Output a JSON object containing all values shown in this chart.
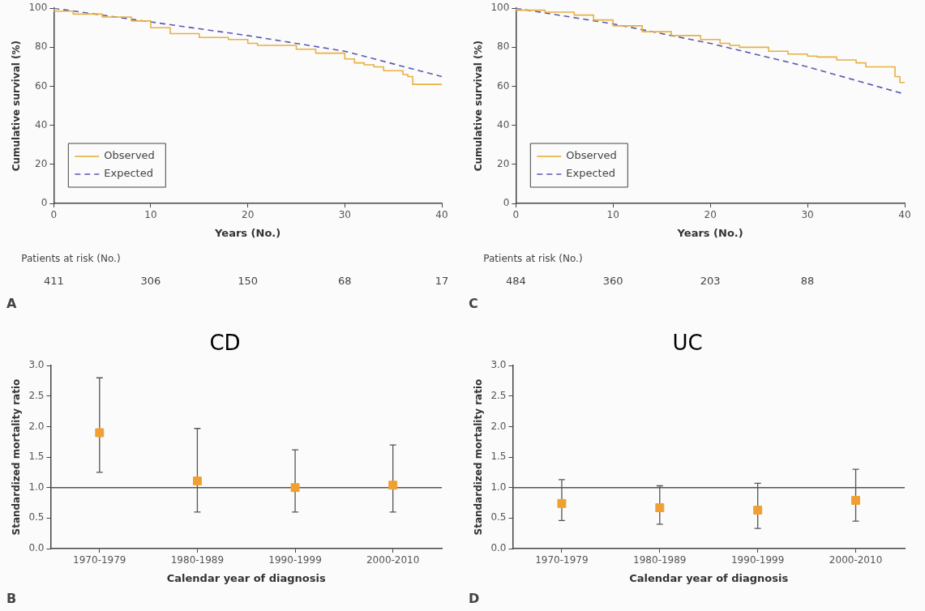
{
  "chart_data": [
    {
      "type": "step",
      "xlabel": "Years (No.)",
      "ylabel": "Cumulative survival (%)",
      "xlim": [
        0,
        40
      ],
      "xticks": [
        0,
        10,
        20,
        30,
        40
      ],
      "ylim": [
        0,
        100
      ],
      "yticks": [
        0,
        20,
        40,
        60,
        80,
        100
      ],
      "legend": "bottom left",
      "grid": false,
      "series": [
        {
          "name": "Observed",
          "color": "#e8b040",
          "line_style": "solid",
          "x": [
            0,
            2,
            5,
            8,
            10,
            12,
            15,
            18,
            20,
            21,
            25,
            27,
            28,
            30,
            31,
            32,
            33,
            34,
            35,
            36,
            36.5,
            37,
            37.5,
            40
          ],
          "values": [
            100,
            98.5,
            97,
            95.5,
            93.5,
            90,
            87,
            85,
            84,
            82,
            81,
            79,
            77,
            77,
            74,
            72,
            71,
            70,
            68,
            68,
            66,
            65,
            61,
            61
          ]
        },
        {
          "name": "Expected",
          "type": "line",
          "color": "#5a5ab0",
          "line_style": "dashed",
          "x": [
            0,
            10,
            20,
            30,
            40
          ],
          "values": [
            100,
            93,
            86,
            78,
            65
          ]
        }
      ],
      "annotations": [
        "Patients at risk (No.)",
        "411",
        "306",
        "150",
        "68",
        "17",
        "A"
      ]
    },
    {
      "type": "step",
      "xlabel": "Years (No.)",
      "ylabel": "Cumulative survival (%)",
      "xlim": [
        0,
        40
      ],
      "xticks": [
        0,
        10,
        20,
        30,
        40
      ],
      "ylim": [
        0,
        100
      ],
      "yticks": [
        0,
        20,
        40,
        60,
        80,
        100
      ],
      "legend": "bottom left",
      "grid": false,
      "series": [
        {
          "name": "Observed",
          "color": "#e8b040",
          "line_style": "solid",
          "x": [
            0,
            3,
            6,
            8,
            10,
            13,
            16,
            19,
            21,
            22,
            23,
            26,
            28,
            30,
            31,
            33,
            35,
            36,
            37,
            39,
            39.5,
            40
          ],
          "values": [
            100,
            99,
            98,
            96.5,
            94,
            91,
            88,
            86,
            84,
            82,
            81,
            80,
            78,
            76.5,
            75.5,
            75,
            73.5,
            72,
            70,
            70,
            65,
            62
          ]
        },
        {
          "name": "Expected",
          "type": "line",
          "color": "#5a5ab0",
          "line_style": "dashed",
          "x": [
            0,
            5,
            10,
            15,
            20,
            25,
            30,
            35,
            40
          ],
          "values": [
            100,
            96,
            92,
            87,
            82,
            76,
            70,
            63,
            56
          ]
        }
      ],
      "annotations": [
        "Patients at risk (No.)",
        "484",
        "360",
        "203",
        "88",
        "C"
      ]
    },
    {
      "type": "scatter",
      "title": "CD",
      "xlabel": "Calendar year of diagnosis",
      "ylabel": "Standardized mortality ratio",
      "categories": [
        "1970-1979",
        "1980-1989",
        "1990-1999",
        "2000-2010"
      ],
      "ylim": [
        0,
        3
      ],
      "yticks": [
        {
          "value": 0,
          "label": "0.0"
        },
        {
          "value": 0.5,
          "label": "0.5"
        },
        {
          "value": 1,
          "label": "1.0"
        },
        {
          "value": 1.5,
          "label": "1.5"
        },
        {
          "value": 2,
          "label": "2.0"
        },
        {
          "value": 2.5,
          "label": "2.5"
        },
        {
          "value": 3,
          "label": "3.0"
        }
      ],
      "marker": "square",
      "grid": false,
      "series": [
        {
          "color": "#f0a030",
          "values": [
            1.9,
            1.11,
            1.0,
            1.04
          ],
          "errors": [
            [
              1.25,
              2.8
            ],
            [
              0.6,
              1.97
            ],
            [
              0.6,
              1.62
            ],
            [
              0.6,
              1.7
            ]
          ]
        }
      ],
      "ref_lines": [
        {
          "axis": "y",
          "value": 1,
          "color": "#555555"
        }
      ],
      "annotations": [
        "B"
      ]
    },
    {
      "type": "scatter",
      "title": "UC",
      "xlabel": "Calendar year of diagnosis",
      "ylabel": "Standardized mortality ratio",
      "categories": [
        "1970-1979",
        "1980-1989",
        "1990-1999",
        "2000-2010"
      ],
      "ylim": [
        0,
        3
      ],
      "yticks": [
        {
          "value": 0,
          "label": "0.0"
        },
        {
          "value": 0.5,
          "label": "0.5"
        },
        {
          "value": 1,
          "label": "1.0"
        },
        {
          "value": 1.5,
          "label": "1.5"
        },
        {
          "value": 2,
          "label": "2.0"
        },
        {
          "value": 2.5,
          "label": "2.5"
        },
        {
          "value": 3,
          "label": "3.0"
        }
      ],
      "marker": "square",
      "grid": false,
      "series": [
        {
          "color": "#f0a030",
          "values": [
            0.74,
            0.67,
            0.63,
            0.79
          ],
          "errors": [
            [
              0.46,
              1.13
            ],
            [
              0.4,
              1.03
            ],
            [
              0.33,
              1.07
            ],
            [
              0.45,
              1.3
            ]
          ]
        }
      ],
      "ref_lines": [
        {
          "axis": "y",
          "value": 1,
          "color": "#555555"
        }
      ],
      "annotations": [
        "D"
      ]
    }
  ]
}
